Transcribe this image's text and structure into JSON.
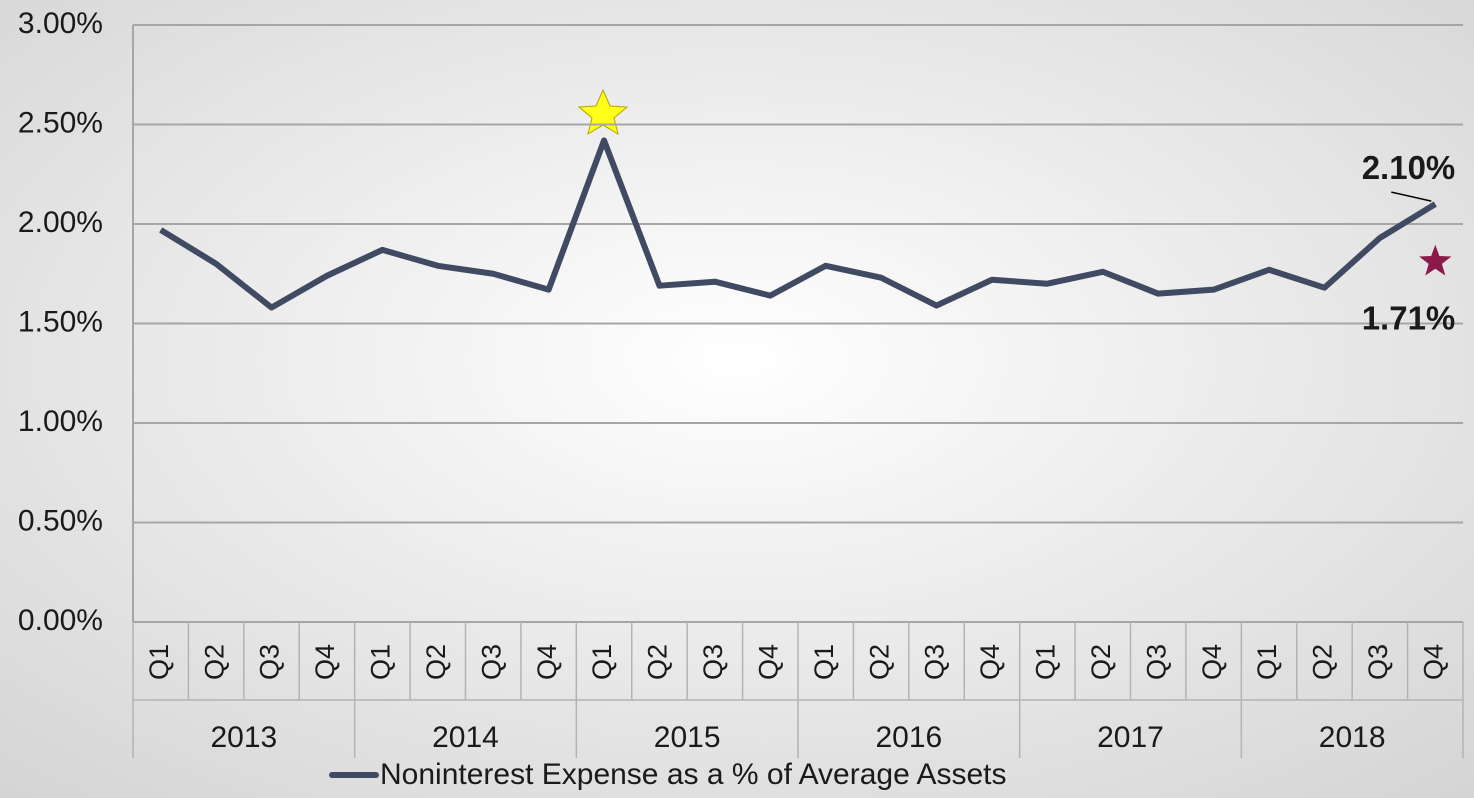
{
  "chart_data": {
    "type": "line",
    "categories": [
      "Q1",
      "Q2",
      "Q3",
      "Q4",
      "Q1",
      "Q2",
      "Q3",
      "Q4",
      "Q1",
      "Q2",
      "Q3",
      "Q4",
      "Q1",
      "Q2",
      "Q3",
      "Q4",
      "Q1",
      "Q2",
      "Q3",
      "Q4",
      "Q1",
      "Q2",
      "Q3",
      "Q4"
    ],
    "category_groups": [
      "2013",
      "2014",
      "2015",
      "2016",
      "2017",
      "2018"
    ],
    "series": [
      {
        "name": "Noninterest Expense as a % of Average Assets",
        "color": "#414a63",
        "values": [
          1.97,
          1.8,
          1.58,
          1.74,
          1.87,
          1.79,
          1.75,
          1.67,
          2.42,
          1.69,
          1.71,
          1.64,
          1.79,
          1.73,
          1.59,
          1.72,
          1.7,
          1.76,
          1.65,
          1.67,
          1.77,
          1.68,
          1.93,
          2.1
        ],
        "value_labels": [
          null,
          null,
          null,
          null,
          null,
          null,
          null,
          null,
          null,
          null,
          null,
          null,
          null,
          null,
          null,
          null,
          null,
          null,
          null,
          null,
          null,
          null,
          null,
          "2.10%"
        ]
      }
    ],
    "benchmark": {
      "value": 1.71,
      "label": "1.71%",
      "color": "#8b1a4a"
    },
    "ylim": [
      0,
      3
    ],
    "yticks": [
      {
        "value": 0,
        "label": "0.00%"
      },
      {
        "value": 0.5,
        "label": "0.50%"
      },
      {
        "value": 1,
        "label": "1.00%"
      },
      {
        "value": 1.5,
        "label": "1.50%"
      },
      {
        "value": 2,
        "label": "2.00%"
      },
      {
        "value": 2.5,
        "label": "2.50%"
      },
      {
        "value": 3,
        "label": "3.00%"
      }
    ],
    "grid": true,
    "legend": "bottom"
  }
}
